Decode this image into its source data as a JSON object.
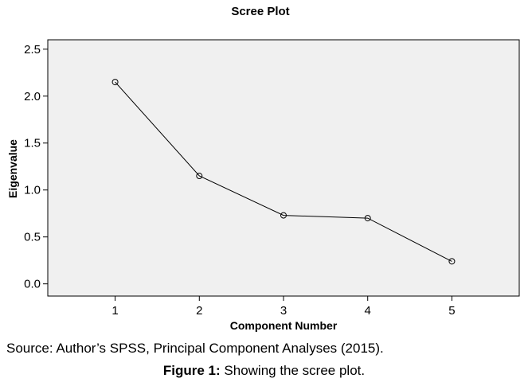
{
  "chart_data": {
    "type": "line",
    "title": "Scree Plot",
    "xlabel": "Component Number",
    "ylabel": "Eigenvalue",
    "x": [
      1,
      2,
      3,
      4,
      5
    ],
    "y": [
      2.15,
      1.15,
      0.73,
      0.7,
      0.24
    ],
    "xlim": [
      0.2,
      5.8
    ],
    "ylim": [
      -0.13,
      2.6
    ],
    "xticks": [
      1,
      2,
      3,
      4,
      5
    ],
    "yticks": [
      0.0,
      0.5,
      1.0,
      1.5,
      2.0,
      2.5
    ],
    "ytick_labels": [
      "0.0",
      "0.5",
      "1.0",
      "1.5",
      "2.0",
      "2.5"
    ],
    "marker": "open-circle",
    "grid": false,
    "colors": {
      "plot_background": "#f0f0f0",
      "line": "#000000",
      "frame": "#000000"
    }
  },
  "caption": {
    "source_text": "Source: Author’s SPSS, Principal Component Analyses (2015).",
    "figure_label": "Figure 1:",
    "figure_text": " Showing the scree plot."
  }
}
